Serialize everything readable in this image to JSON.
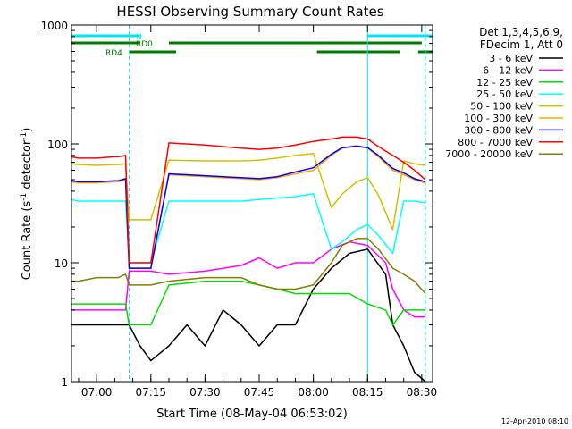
{
  "chart_data": {
    "type": "line",
    "title": "HESSI Observing Summary Count Rates",
    "xlabel": "Start Time (08-May-04 06:53:02)",
    "ylabel": "Count Rate (s",
    "ylabel_sup1": "-1",
    "ylabel_mid": " detector",
    "ylabel_sup2": "-1",
    "ylabel_end": ")",
    "footer": "12-Apr-2010 08:10",
    "y_scale": "log",
    "ylim": [
      1,
      1000
    ],
    "xlim": [
      "06:53",
      "08:33"
    ],
    "x_ticks": [
      "07:00",
      "07:15",
      "07:30",
      "07:45",
      "08:00",
      "08:15",
      "08:30"
    ],
    "y_ticks": [
      "1",
      "10",
      "100",
      "1000"
    ],
    "legend_header": [
      "Det 1,3,4,5,6,9,",
      "FDecim 1, Att 0"
    ],
    "grid": false,
    "legend_placement": "right",
    "flags": [
      {
        "label": "N",
        "color": "#00e5ee",
        "segments": [
          [
            "06:53",
            "07:12"
          ],
          [
            "08:15",
            "08:33"
          ]
        ]
      },
      {
        "label": "RD0",
        "color": "#007a00",
        "segments": [
          [
            "06:53",
            "07:12"
          ],
          [
            "07:20",
            "08:01"
          ],
          [
            "08:01",
            "08:30"
          ]
        ]
      },
      {
        "label": "RD4",
        "color": "#007a00",
        "segments": [
          [
            "07:09",
            "07:22"
          ],
          [
            "08:01",
            "08:24"
          ],
          [
            "08:29",
            "08:33"
          ]
        ]
      }
    ],
    "markers": [
      {
        "time": "06:53",
        "style": "solid"
      },
      {
        "time": "07:09",
        "style": "dashed"
      },
      {
        "time": "08:15",
        "style": "solid"
      },
      {
        "time": "08:31",
        "style": "dashed"
      }
    ],
    "series": [
      {
        "name": "3 - 6 keV",
        "color": "#000000",
        "x": [
          "06:53",
          "07:05",
          "07:06",
          "07:08",
          "07:09",
          "07:12",
          "07:15",
          "07:20",
          "07:25",
          "07:30",
          "07:35",
          "07:40",
          "07:45",
          "07:50",
          "07:55",
          "08:00",
          "08:05",
          "08:10",
          "08:15",
          "08:20",
          "08:22",
          "08:25",
          "08:28",
          "08:31"
        ],
        "y": [
          3,
          3,
          3,
          3,
          3,
          2,
          1.5,
          2,
          3,
          2,
          4,
          3,
          2,
          3,
          3,
          6,
          9,
          12,
          13,
          8,
          3,
          2,
          1.2,
          1
        ]
      },
      {
        "name": "6 - 12 keV",
        "color": "#ff00ff",
        "x": [
          "06:53",
          "07:05",
          "07:06",
          "07:08",
          "07:09",
          "07:12",
          "07:15",
          "07:20",
          "07:30",
          "07:40",
          "07:45",
          "07:50",
          "07:55",
          "08:00",
          "08:05",
          "08:10",
          "08:15",
          "08:20",
          "08:22",
          "08:25",
          "08:28",
          "08:31"
        ],
        "y": [
          4,
          4,
          4,
          4,
          8.5,
          8.5,
          8.5,
          8,
          8.5,
          9.5,
          11,
          9,
          10,
          10,
          13,
          15,
          14,
          10,
          6,
          4,
          3.5,
          3.5
        ]
      },
      {
        "name": "12 - 25 keV",
        "color": "#00e000",
        "x": [
          "06:53",
          "07:05",
          "07:06",
          "07:08",
          "07:09",
          "07:12",
          "07:15",
          "07:20",
          "07:30",
          "07:40",
          "07:45",
          "07:50",
          "07:55",
          "08:00",
          "08:05",
          "08:10",
          "08:15",
          "08:20",
          "08:22",
          "08:25",
          "08:28",
          "08:31"
        ],
        "y": [
          4.5,
          4.5,
          4.5,
          4.5,
          3,
          3,
          3,
          6.5,
          7,
          7,
          6.5,
          6,
          5.5,
          5.5,
          5.5,
          5.5,
          4.5,
          4,
          3,
          4,
          4,
          4
        ]
      },
      {
        "name": "25 - 50 keV",
        "color": "#00ffff",
        "x": [
          "06:53",
          "06:55",
          "07:00",
          "07:05",
          "07:06",
          "07:08",
          "07:09",
          "07:12",
          "07:15",
          "07:20",
          "07:30",
          "07:40",
          "07:45",
          "07:50",
          "07:55",
          "08:00",
          "08:05",
          "08:08",
          "08:12",
          "08:15",
          "08:18",
          "08:22",
          "08:25",
          "08:28",
          "08:31"
        ],
        "y": [
          34,
          33,
          33,
          33,
          33,
          33,
          10,
          10,
          10,
          33,
          33,
          33,
          34,
          35,
          36,
          38,
          13,
          15,
          19,
          21,
          17,
          12,
          33,
          33,
          32
        ]
      },
      {
        "name": "50 - 100 keV",
        "color": "#d0c000",
        "x": [
          "06:53",
          "06:55",
          "07:00",
          "07:05",
          "07:06",
          "07:08",
          "07:09",
          "07:12",
          "07:15",
          "07:20",
          "07:30",
          "07:40",
          "07:45",
          "07:50",
          "07:55",
          "08:00",
          "08:05",
          "08:08",
          "08:12",
          "08:15",
          "08:18",
          "08:22",
          "08:25",
          "08:28",
          "08:31"
        ],
        "y": [
          68,
          67,
          66,
          67,
          67,
          68,
          23,
          23,
          23,
          73,
          72,
          72,
          73,
          76,
          80,
          83,
          29,
          38,
          48,
          52,
          37,
          19,
          72,
          68,
          66
        ]
      },
      {
        "name": "100 - 300 keV",
        "color": "#ffa500",
        "x": [
          "06:53",
          "06:55",
          "07:00",
          "07:05",
          "07:06",
          "07:08",
          "07:09",
          "07:12",
          "07:15",
          "07:20",
          "07:30",
          "07:40",
          "07:45",
          "07:50",
          "07:55",
          "08:00",
          "08:05",
          "08:08",
          "08:12",
          "08:15",
          "08:18",
          "08:22",
          "08:25",
          "08:28",
          "08:31"
        ],
        "y": [
          48,
          47,
          47,
          48,
          48,
          50,
          9,
          9,
          9,
          55,
          53,
          51,
          50,
          52,
          56,
          60,
          80,
          92,
          95,
          92,
          78,
          60,
          55,
          50,
          47
        ]
      },
      {
        "name": "300 - 800 keV",
        "color": "#0000ff",
        "x": [
          "06:53",
          "06:55",
          "07:00",
          "07:05",
          "07:06",
          "07:08",
          "07:09",
          "07:12",
          "07:15",
          "07:20",
          "07:30",
          "07:40",
          "07:45",
          "07:50",
          "07:55",
          "08:00",
          "08:05",
          "08:08",
          "08:12",
          "08:15",
          "08:18",
          "08:22",
          "08:25",
          "08:28",
          "08:31"
        ],
        "y": [
          49,
          48,
          48,
          49,
          49,
          51,
          9,
          9,
          9,
          56,
          54,
          52,
          51,
          53,
          58,
          63,
          82,
          93,
          96,
          93,
          80,
          62,
          57,
          51,
          48
        ]
      },
      {
        "name": "800 - 7000 keV",
        "color": "#ff0000",
        "x": [
          "06:53",
          "06:55",
          "07:00",
          "07:05",
          "07:06",
          "07:08",
          "07:09",
          "07:12",
          "07:15",
          "07:20",
          "07:30",
          "07:40",
          "07:45",
          "07:50",
          "07:55",
          "08:00",
          "08:05",
          "08:08",
          "08:12",
          "08:15",
          "08:18",
          "08:22",
          "08:25",
          "08:28",
          "08:31"
        ],
        "y": [
          78,
          76,
          76,
          78,
          78,
          80,
          10,
          10,
          10,
          102,
          98,
          92,
          90,
          92,
          98,
          105,
          110,
          114,
          114,
          110,
          95,
          80,
          70,
          60,
          50
        ]
      },
      {
        "name": "7000 - 20000 keV",
        "color": "#808000",
        "x": [
          "06:53",
          "06:55",
          "07:00",
          "07:05",
          "07:06",
          "07:08",
          "07:09",
          "07:12",
          "07:15",
          "07:20",
          "07:30",
          "07:40",
          "07:45",
          "07:50",
          "07:55",
          "08:00",
          "08:05",
          "08:08",
          "08:12",
          "08:15",
          "08:18",
          "08:22",
          "08:25",
          "08:28",
          "08:31"
        ],
        "y": [
          7,
          7,
          7.5,
          7.5,
          7.5,
          8,
          6.5,
          6.5,
          6.5,
          7,
          7.5,
          7.5,
          6.5,
          6,
          6,
          6.5,
          10,
          14,
          16,
          16,
          13,
          9,
          8,
          7,
          5.5
        ]
      }
    ]
  }
}
